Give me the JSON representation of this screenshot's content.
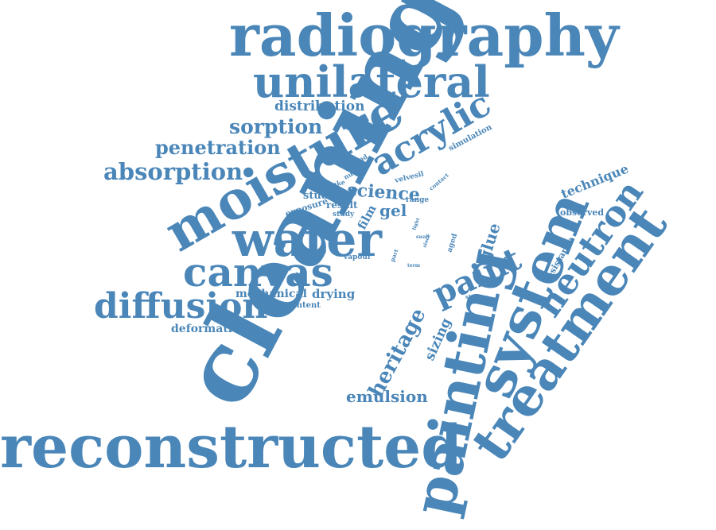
{
  "word_cloud": {
    "color": "#4a86b8",
    "words": [
      "radiography",
      "unilateral",
      "cleaning",
      "moisture",
      "acrylic",
      "water",
      "distribution",
      "sorption",
      "penetration",
      "absorption",
      "canvas",
      "diffusion",
      "mechanical",
      "drying",
      "content",
      "deformation",
      "reconstructed",
      "painting",
      "system",
      "treatment",
      "neutron",
      "technique",
      "observed",
      "resistance",
      "science",
      "gel",
      "studied",
      "result",
      "exposure",
      "study",
      "film",
      "glue",
      "paint",
      "heritage",
      "sizing",
      "emulsion",
      "vapour",
      "simulation",
      "velvesil",
      "ground",
      "number",
      "uptake",
      "contact",
      "range",
      "light",
      "swab",
      "aged",
      "part",
      "term",
      "since",
      "studies"
    ]
  }
}
